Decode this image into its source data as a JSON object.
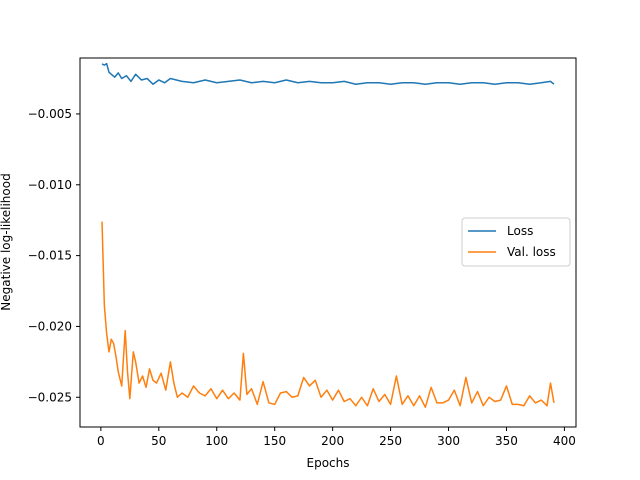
{
  "chart_data": {
    "type": "line",
    "title": "",
    "xlabel": "Epochs",
    "ylabel": "Negative log-likelihood",
    "xlim": [
      -18,
      410
    ],
    "ylim": [
      -0.0271,
      -0.00105
    ],
    "xticks": [
      0,
      50,
      100,
      150,
      200,
      250,
      300,
      350,
      400
    ],
    "xtick_labels": [
      "0",
      "50",
      "100",
      "150",
      "200",
      "250",
      "300",
      "350",
      "400"
    ],
    "yticks": [
      -0.025,
      -0.02,
      -0.015,
      -0.01,
      -0.005
    ],
    "ytick_labels": [
      "−0.025",
      "−0.020",
      "−0.015",
      "−0.010",
      "−0.005"
    ],
    "grid": false,
    "legend": {
      "position": "center-right",
      "entries": [
        "Loss",
        "Val. loss"
      ]
    },
    "series": [
      {
        "name": "Loss",
        "color": "#1f77b4",
        "x": [
          1,
          3,
          5,
          7,
          9,
          12,
          15,
          18,
          22,
          26,
          30,
          35,
          40,
          45,
          50,
          55,
          60,
          70,
          80,
          90,
          100,
          110,
          120,
          130,
          140,
          150,
          160,
          170,
          180,
          190,
          200,
          210,
          220,
          230,
          240,
          250,
          260,
          270,
          280,
          290,
          300,
          310,
          320,
          330,
          340,
          350,
          360,
          370,
          380,
          388,
          391
        ],
        "y": [
          -0.00147,
          -0.00155,
          -0.00145,
          -0.00205,
          -0.0022,
          -0.0024,
          -0.0021,
          -0.0025,
          -0.0023,
          -0.0027,
          -0.0022,
          -0.0026,
          -0.0025,
          -0.0029,
          -0.0026,
          -0.0028,
          -0.0025,
          -0.0027,
          -0.0028,
          -0.0026,
          -0.0028,
          -0.0027,
          -0.0026,
          -0.0028,
          -0.0027,
          -0.0028,
          -0.0026,
          -0.0028,
          -0.0027,
          -0.0028,
          -0.0028,
          -0.0027,
          -0.0029,
          -0.0028,
          -0.0028,
          -0.0029,
          -0.0028,
          -0.0028,
          -0.0029,
          -0.0028,
          -0.0028,
          -0.0029,
          -0.0028,
          -0.0028,
          -0.0029,
          -0.0028,
          -0.0028,
          -0.0029,
          -0.0028,
          -0.0027,
          -0.0029
        ]
      },
      {
        "name": "Val. loss",
        "color": "#ff7f0e",
        "x": [
          1,
          3,
          5,
          7,
          9,
          11,
          13,
          15,
          18,
          21,
          23,
          25,
          28,
          30,
          33,
          36,
          39,
          42,
          45,
          48,
          52,
          56,
          60,
          63,
          66,
          70,
          75,
          80,
          85,
          90,
          95,
          100,
          105,
          110,
          115,
          120,
          123,
          126,
          130,
          135,
          140,
          145,
          150,
          155,
          160,
          165,
          170,
          175,
          180,
          185,
          190,
          195,
          200,
          205,
          210,
          215,
          220,
          225,
          230,
          235,
          240,
          245,
          250,
          255,
          260,
          265,
          270,
          275,
          280,
          285,
          290,
          295,
          300,
          305,
          310,
          315,
          320,
          325,
          330,
          335,
          340,
          345,
          350,
          355,
          360,
          365,
          370,
          375,
          380,
          385,
          388,
          391
        ],
        "y": [
          -0.0126,
          -0.0185,
          -0.0205,
          -0.0218,
          -0.0209,
          -0.0212,
          -0.0221,
          -0.0232,
          -0.0242,
          -0.0203,
          -0.0232,
          -0.0251,
          -0.0218,
          -0.0225,
          -0.024,
          -0.0235,
          -0.0243,
          -0.023,
          -0.0238,
          -0.024,
          -0.0233,
          -0.0245,
          -0.0225,
          -0.024,
          -0.025,
          -0.0247,
          -0.025,
          -0.0242,
          -0.0247,
          -0.0249,
          -0.0244,
          -0.0251,
          -0.0245,
          -0.0251,
          -0.0247,
          -0.0252,
          -0.0219,
          -0.0248,
          -0.0244,
          -0.0255,
          -0.0239,
          -0.0254,
          -0.0255,
          -0.0247,
          -0.0246,
          -0.025,
          -0.0249,
          -0.0236,
          -0.0242,
          -0.0238,
          -0.025,
          -0.0245,
          -0.0252,
          -0.0245,
          -0.0253,
          -0.0251,
          -0.0256,
          -0.025,
          -0.0256,
          -0.0244,
          -0.0253,
          -0.0248,
          -0.0255,
          -0.0235,
          -0.0255,
          -0.0249,
          -0.0256,
          -0.0249,
          -0.0257,
          -0.0243,
          -0.0254,
          -0.0254,
          -0.0252,
          -0.0245,
          -0.0256,
          -0.0236,
          -0.0254,
          -0.0246,
          -0.0256,
          -0.025,
          -0.0253,
          -0.0252,
          -0.0242,
          -0.0255,
          -0.0255,
          -0.0256,
          -0.0249,
          -0.0254,
          -0.0252,
          -0.0256,
          -0.024,
          -0.0254
        ]
      }
    ]
  }
}
